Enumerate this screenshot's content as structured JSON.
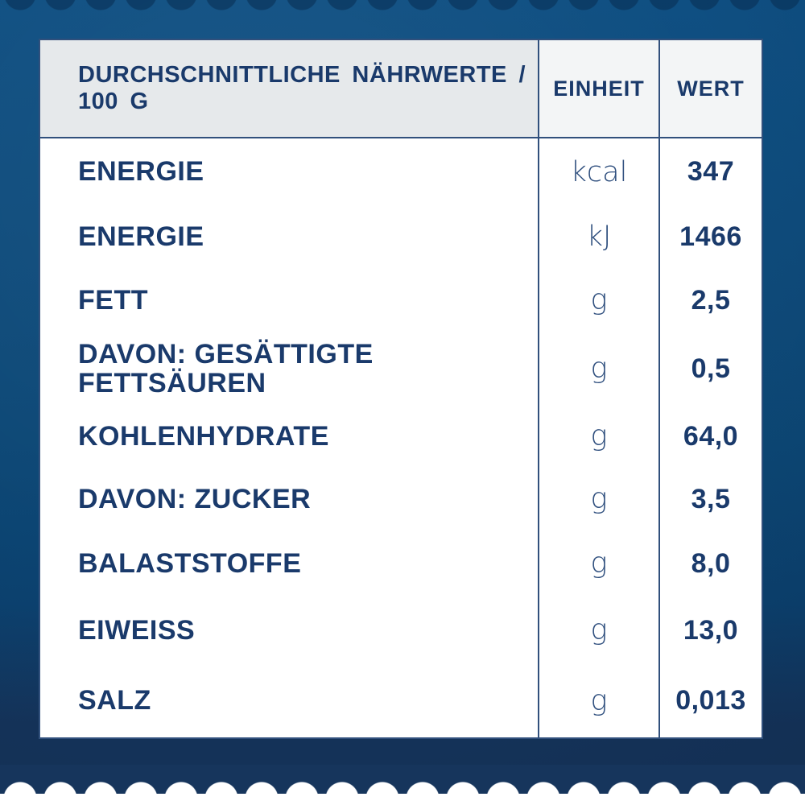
{
  "table": {
    "header": {
      "nutrients": "DURCHSCHNITTLICHE NÄHRWERTE / 100 G",
      "unit": "EINHEIT",
      "value": "WERT"
    },
    "rows": [
      {
        "label": "ENERGIE",
        "unit": "kcal",
        "value": "347"
      },
      {
        "label": "ENERGIE",
        "unit": "kJ",
        "value": "1466"
      },
      {
        "label": "FETT",
        "unit": "g",
        "value": "2,5"
      },
      {
        "label": "DAVON: GESÄTTIGTE FETTSÄUREN",
        "unit": "g",
        "value": "0,5"
      },
      {
        "label": "KOHLENHYDRATE",
        "unit": "g",
        "value": "64,0"
      },
      {
        "label": "DAVON: ZUCKER",
        "unit": "g",
        "value": "3,5"
      },
      {
        "label": "BALASTSTOFFE",
        "unit": "g",
        "value": "8,0"
      },
      {
        "label": "EIWEISS",
        "unit": "g",
        "value": "13,0"
      },
      {
        "label": "SALZ",
        "unit": "g",
        "value": "0,013"
      }
    ]
  },
  "colors": {
    "background_navy_top": "#0F4F82",
    "background_navy_bottom": "#16355C",
    "table_line": "#31507C",
    "text_navy": "#1A3A6B",
    "unit_text": "#2F4F7E",
    "header_left_bg": "#E6E9EB",
    "header_right_bg": "#F3F5F6",
    "body_bg": "#FFFFFF"
  }
}
